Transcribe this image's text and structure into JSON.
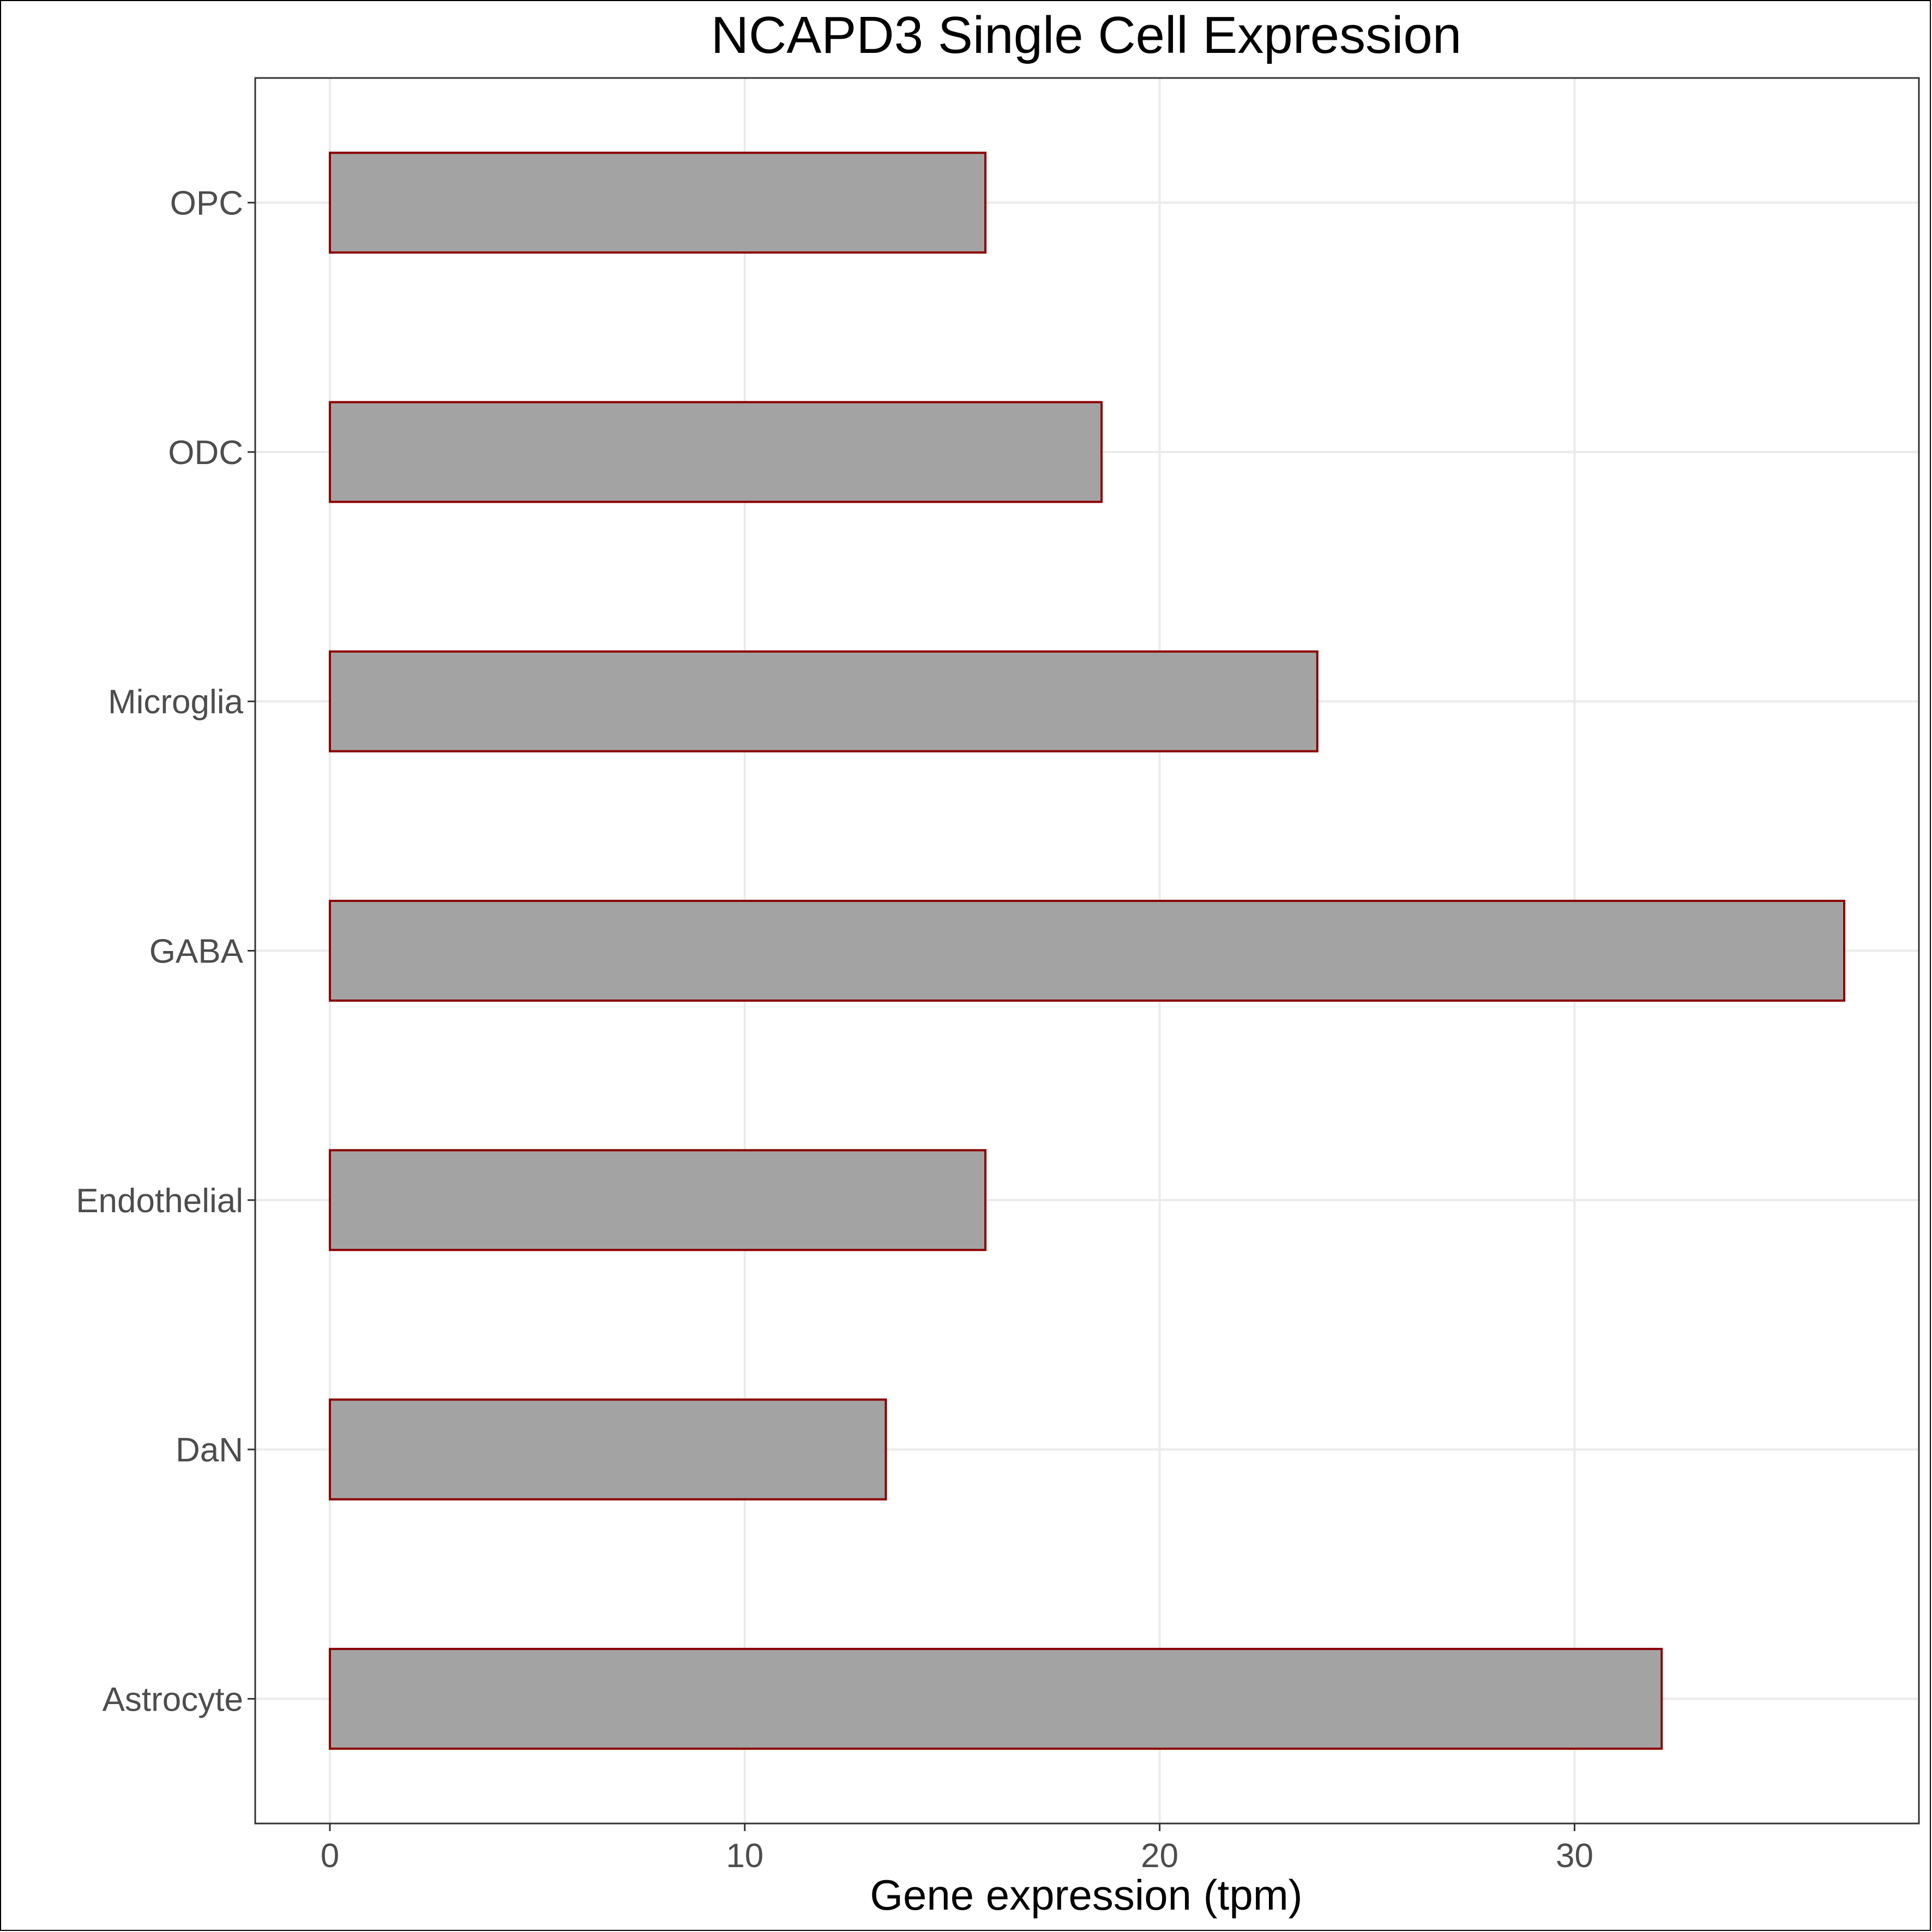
{
  "chart_data": {
    "type": "bar",
    "orientation": "horizontal",
    "title": "NCAPD3 Single Cell Expression",
    "xlabel": "Gene expression (tpm)",
    "ylabel": "",
    "categories": [
      "Astrocyte",
      "DaN",
      "Endothelial",
      "GABA",
      "Microglia",
      "ODC",
      "OPC"
    ],
    "values": [
      32.1,
      13.4,
      15.8,
      36.5,
      23.8,
      18.6,
      15.8
    ],
    "xlim": [
      -1.8,
      38.3
    ],
    "xticks": [
      0,
      10,
      20,
      30
    ],
    "grid": true,
    "legend": "none",
    "colors": {
      "bar_fill": "#a3a3a3",
      "bar_outline": "#8b0000",
      "grid": "#ebebeb"
    }
  }
}
